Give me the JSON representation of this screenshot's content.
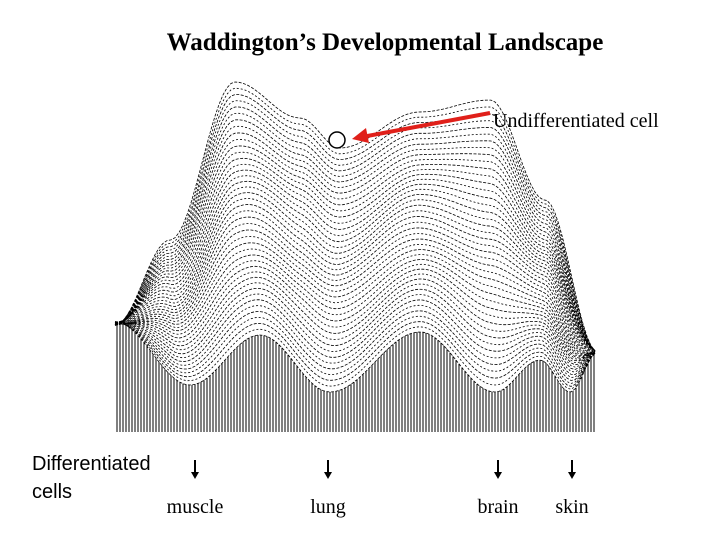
{
  "title": "Waddington’s Developmental Landscape",
  "annotation": "Undifferentiated cell",
  "side_label": {
    "line1": "Differentiated",
    "line2": "cells"
  },
  "fates": [
    "muscle",
    "lung",
    "brain",
    "skin"
  ]
}
